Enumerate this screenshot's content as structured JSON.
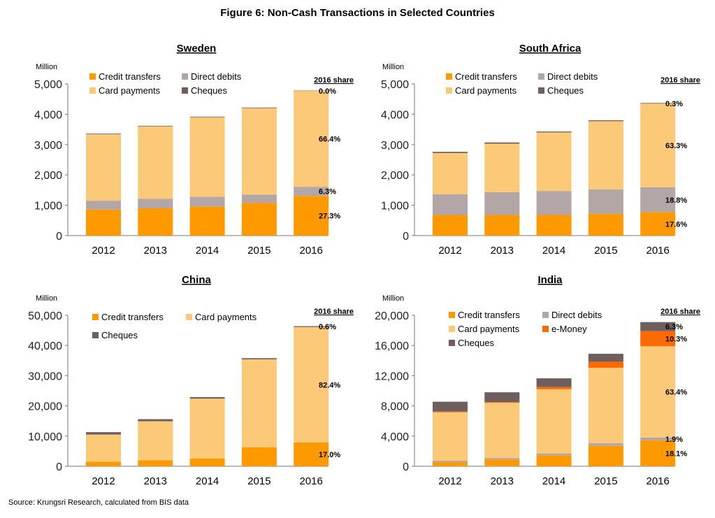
{
  "title": "Figure 6: Non-Cash Transactions in Selected Countries",
  "source": "Source: Krungsri Research, calculated from BIS data",
  "colors": {
    "Credit transfers": "#FF9900",
    "Direct debits": "#B3A6A6",
    "Card payments": "#FCC978",
    "e-Money": "#FF6A00",
    "Cheques": "#6E5F5E"
  },
  "chart_data": [
    {
      "type": "bar",
      "stacked": true,
      "title": "Sweden",
      "ylabel": "Million",
      "share_header": "2016 share",
      "categories": [
        "2012",
        "2013",
        "2014",
        "2015",
        "2016"
      ],
      "ylim": [
        0,
        5000
      ],
      "yticks": [
        0,
        1000,
        2000,
        3000,
        4000,
        5000
      ],
      "ytick_labels": [
        "0",
        "1,000",
        "2,000",
        "3,000",
        "4,000",
        "5,000"
      ],
      "legend": [
        "Credit transfers",
        "Direct debits",
        "Card payments",
        "Cheques"
      ],
      "series": [
        {
          "name": "Credit transfers",
          "values": [
            860,
            900,
            960,
            1080,
            1310
          ],
          "share": "27.3%"
        },
        {
          "name": "Direct debits",
          "values": [
            290,
            310,
            320,
            270,
            300
          ],
          "share": "6.3%"
        },
        {
          "name": "Card payments",
          "values": [
            2190,
            2390,
            2620,
            2850,
            3160
          ],
          "share": "66.4%"
        },
        {
          "name": "Cheques",
          "values": [
            20,
            20,
            20,
            20,
            10
          ],
          "share": "0.0%"
        }
      ]
    },
    {
      "type": "bar",
      "stacked": true,
      "title": "South Africa",
      "ylabel": "Million",
      "share_header": "2016 share",
      "categories": [
        "2012",
        "2013",
        "2014",
        "2015",
        "2016"
      ],
      "ylim": [
        0,
        5000
      ],
      "yticks": [
        0,
        1000,
        2000,
        3000,
        4000,
        5000
      ],
      "ytick_labels": [
        "0",
        "1,000",
        "2,000",
        "3,000",
        "4,000",
        "5,000"
      ],
      "legend": [
        "Credit transfers",
        "Direct debits",
        "Card payments",
        "Cheques"
      ],
      "series": [
        {
          "name": "Credit transfers",
          "values": [
            680,
            680,
            680,
            720,
            770
          ],
          "share": "17.6%"
        },
        {
          "name": "Direct debits",
          "values": [
            680,
            750,
            790,
            800,
            820
          ],
          "share": "18.8%"
        },
        {
          "name": "Card payments",
          "values": [
            1360,
            1600,
            1930,
            2250,
            2760
          ],
          "share": "63.3%"
        },
        {
          "name": "Cheques",
          "values": [
            40,
            40,
            30,
            30,
            20
          ],
          "share": "0.3%"
        }
      ]
    },
    {
      "type": "bar",
      "stacked": true,
      "title": "China",
      "ylabel": "Million",
      "share_header": "2016 share",
      "categories": [
        "2012",
        "2013",
        "2014",
        "2015",
        "2016"
      ],
      "ylim": [
        0,
        50000
      ],
      "yticks": [
        0,
        10000,
        20000,
        30000,
        40000,
        50000
      ],
      "ytick_labels": [
        "0",
        "10,000",
        "20,000",
        "30,000",
        "40,000",
        "50,000"
      ],
      "legend": [
        "Credit transfers",
        "Card payments",
        "Cheques"
      ],
      "series": [
        {
          "name": "Credit transfers",
          "values": [
            1500,
            2000,
            2600,
            6300,
            7900
          ],
          "share": "17.0%"
        },
        {
          "name": "Card payments",
          "values": [
            9000,
            12900,
            19800,
            29100,
            38200
          ],
          "share": "82.4%"
        },
        {
          "name": "Cheques",
          "values": [
            800,
            700,
            500,
            400,
            300
          ],
          "share": "0.6%"
        }
      ]
    },
    {
      "type": "bar",
      "stacked": true,
      "title": "India",
      "ylabel": "Million",
      "share_header": "2016 share",
      "categories": [
        "2012",
        "2013",
        "2014",
        "2015",
        "2016"
      ],
      "ylim": [
        0,
        20000
      ],
      "yticks": [
        0,
        4000,
        8000,
        12000,
        16000,
        20000
      ],
      "ytick_labels": [
        "0",
        "4,000",
        "8,000",
        "12,000",
        "16,000",
        "20,000"
      ],
      "legend": [
        "Credit transfers",
        "Direct debits",
        "Card payments",
        "e-Money",
        "Cheques"
      ],
      "series": [
        {
          "name": "Credit transfers",
          "values": [
            550,
            900,
            1450,
            2700,
            3450
          ],
          "share": "18.1%"
        },
        {
          "name": "Direct debits",
          "values": [
            200,
            200,
            250,
            350,
            350
          ],
          "share": "1.9%"
        },
        {
          "name": "Card payments",
          "values": [
            6400,
            7300,
            8500,
            10000,
            12100
          ],
          "share": "63.4%"
        },
        {
          "name": "e-Money",
          "values": [
            100,
            100,
            300,
            800,
            2000
          ],
          "share": "10.3%"
        },
        {
          "name": "Cheques",
          "values": [
            1300,
            1300,
            1150,
            1050,
            1200
          ],
          "share": "6.3%"
        }
      ]
    }
  ]
}
